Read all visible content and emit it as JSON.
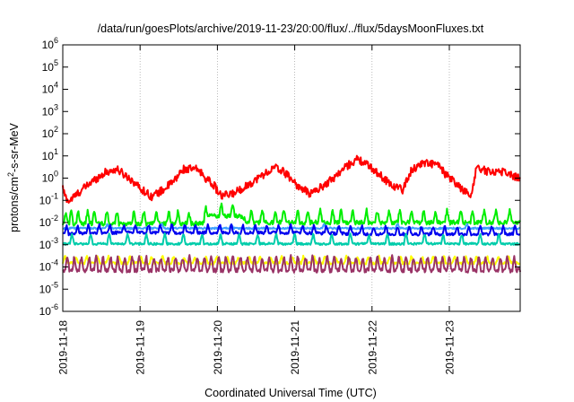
{
  "chart_data": {
    "type": "line",
    "title": "/data/run/goesPlots/archive/2019-11-23/20:00/flux/../flux/5daysMoonFluxes.txt",
    "xlabel": "Coordinated Universal Time (UTC)",
    "ylabel": {
      "base": "protons/cm",
      "sup": "2",
      "rest": "-s-sr-MeV"
    },
    "x_scale": "time",
    "x_range": [
      "2019-11-18T00:00",
      "2019-11-23T22:00"
    ],
    "x_ticks": [
      "2019-11-18",
      "2019-11-19",
      "2019-11-20",
      "2019-11-21",
      "2019-11-22",
      "2019-11-23"
    ],
    "y_scale": "log",
    "ylim": [
      1e-06,
      1000000.0
    ],
    "y_ticks": [
      {
        "base": "10",
        "exp": "-6"
      },
      {
        "base": "10",
        "exp": "-5"
      },
      {
        "base": "10",
        "exp": "-4"
      },
      {
        "base": "10",
        "exp": "-3"
      },
      {
        "base": "10",
        "exp": "-2"
      },
      {
        "base": "10",
        "exp": "-1"
      },
      {
        "base": "10",
        "exp": "0"
      },
      {
        "base": "10",
        "exp": "1"
      },
      {
        "base": "10",
        "exp": "2"
      },
      {
        "base": "10",
        "exp": "3"
      },
      {
        "base": "10",
        "exp": "4"
      },
      {
        "base": "10",
        "exp": "5"
      },
      {
        "base": "10",
        "exp": "6"
      }
    ],
    "grid": "vertical dotted at day ticks",
    "series": [
      {
        "color": "#ff0000",
        "profile": [
          [
            0.0,
            0.35
          ],
          [
            0.03,
            0.15
          ],
          [
            0.08,
            0.09
          ],
          [
            0.15,
            0.15
          ],
          [
            0.25,
            0.3
          ],
          [
            0.4,
            0.8
          ],
          [
            0.55,
            1.8
          ],
          [
            0.7,
            2.5
          ],
          [
            0.8,
            1.4
          ],
          [
            0.9,
            0.8
          ],
          [
            1.0,
            0.35
          ],
          [
            1.15,
            0.15
          ],
          [
            1.3,
            0.3
          ],
          [
            1.45,
            0.8
          ],
          [
            1.55,
            2.5
          ],
          [
            1.75,
            2.5
          ],
          [
            1.85,
            1.0
          ],
          [
            1.95,
            0.5
          ],
          [
            2.05,
            0.15
          ],
          [
            2.2,
            0.2
          ],
          [
            2.4,
            0.5
          ],
          [
            2.6,
            1.5
          ],
          [
            2.75,
            3.0
          ],
          [
            2.85,
            2.0
          ],
          [
            2.95,
            1.0
          ],
          [
            3.05,
            0.4
          ],
          [
            3.2,
            0.2
          ],
          [
            3.35,
            0.4
          ],
          [
            3.5,
            1.0
          ],
          [
            3.65,
            3.0
          ],
          [
            3.8,
            7.0
          ],
          [
            3.9,
            5.0
          ],
          [
            4.05,
            2.0
          ],
          [
            4.25,
            0.5
          ],
          [
            4.4,
            0.3
          ],
          [
            4.5,
            2.0
          ],
          [
            4.65,
            5.0
          ],
          [
            4.85,
            4.0
          ],
          [
            4.95,
            1.5
          ],
          [
            5.1,
            0.5
          ],
          [
            5.2,
            0.25
          ],
          [
            5.28,
            0.15
          ],
          [
            5.35,
            3.0
          ],
          [
            5.5,
            2.0
          ],
          [
            5.7,
            2.0
          ],
          [
            5.9,
            1.0
          ]
        ],
        "noise": 0.18
      },
      {
        "color": "#00ee00",
        "profile": [
          [
            0.0,
            0.009
          ],
          [
            1.8,
            0.009
          ],
          [
            1.9,
            0.02
          ],
          [
            2.3,
            0.02
          ],
          [
            2.4,
            0.01
          ],
          [
            5.9,
            0.01
          ]
        ],
        "spikes": [
          0.04,
          0.11,
          0.2,
          0.32,
          0.41,
          0.57,
          0.7,
          0.92,
          1.05,
          1.21,
          1.37,
          1.49,
          1.63,
          1.85,
          2.05,
          2.2,
          2.44,
          2.58,
          2.75,
          2.86,
          3.04,
          3.17,
          3.33,
          3.49,
          3.6,
          3.75,
          3.93,
          4.07,
          4.22,
          4.36,
          4.51,
          4.67,
          4.82,
          4.97,
          5.15,
          5.3,
          5.45,
          5.6,
          5.78
        ],
        "spike_factor": 3.5,
        "noise": 0.1
      },
      {
        "color": "#3fa0ff",
        "profile": [
          [
            0.0,
            0.0055
          ],
          [
            5.9,
            0.0055
          ]
        ],
        "spikes": [
          0.58,
          1.28,
          2.18,
          3.38,
          4.33,
          5.23
        ],
        "spike_factor": 1.6,
        "noise": 0.04
      },
      {
        "color": "#0000ee",
        "profile": [
          [
            0.0,
            0.003
          ],
          [
            0.4,
            0.0035
          ],
          [
            1.0,
            0.0035
          ],
          [
            2.0,
            0.0035
          ],
          [
            3.0,
            0.0035
          ],
          [
            4.0,
            0.003
          ],
          [
            5.0,
            0.003
          ],
          [
            5.9,
            0.003
          ]
        ],
        "spikes": [
          0.05,
          0.19,
          0.33,
          0.47,
          0.61,
          0.79,
          0.94,
          1.11,
          1.26,
          1.41,
          1.58,
          1.72,
          1.88,
          2.03,
          2.18,
          2.33,
          2.49,
          2.64,
          2.79,
          2.95,
          3.1,
          3.25,
          3.41,
          3.57,
          3.72,
          3.87,
          4.02,
          4.18,
          4.33,
          4.48,
          4.64,
          4.79,
          4.94,
          5.1,
          5.25,
          5.4,
          5.55,
          5.7,
          5.85
        ],
        "spike_factor": 2.3,
        "noise": 0.07
      },
      {
        "color": "#00ccaa",
        "profile": [
          [
            0.0,
            0.0011
          ],
          [
            5.9,
            0.0011
          ]
        ],
        "spikes": [
          0.12,
          0.36,
          0.6,
          0.84,
          1.08,
          1.32,
          1.56,
          1.8,
          2.04,
          2.28,
          2.52,
          2.76,
          3.0,
          3.24,
          3.48,
          3.72,
          3.96,
          4.2,
          4.44,
          4.68,
          4.92,
          5.16,
          5.4,
          5.64
        ],
        "spike_factor": 2.8,
        "noise": 0.05
      },
      {
        "color": "#ffff00",
        "profile": [
          [
            0.0,
            0.00015
          ],
          [
            5.9,
            0.00015
          ]
        ],
        "spikes": [
          0.03,
          0.17,
          0.31,
          0.45,
          0.59,
          0.73,
          0.87,
          1.01,
          1.15,
          1.29,
          1.43,
          1.57,
          1.71,
          1.85,
          1.99,
          2.13,
          2.27,
          2.41,
          2.55,
          2.69,
          2.83,
          2.97,
          3.11,
          3.25,
          3.39,
          3.53,
          3.67,
          3.81,
          3.95,
          4.09,
          4.23,
          4.37,
          4.51,
          4.65,
          4.79,
          4.93,
          5.07,
          5.21,
          5.35,
          5.49,
          5.63,
          5.77
        ],
        "spike_factor": 2.0,
        "noise": 0.06
      },
      {
        "color": "#993366",
        "profile": [
          [
            0.0,
            7e-05
          ],
          [
            5.9,
            7e-05
          ]
        ],
        "spikes": [
          0.06,
          0.15,
          0.24,
          0.34,
          0.43,
          0.52,
          0.62,
          0.71,
          0.8,
          0.9,
          0.99,
          1.08,
          1.18,
          1.27,
          1.36,
          1.46,
          1.55,
          1.64,
          1.74,
          1.83,
          1.92,
          2.02,
          2.11,
          2.2,
          2.3,
          2.39,
          2.48,
          2.58,
          2.67,
          2.76,
          2.86,
          2.95,
          3.04,
          3.14,
          3.23,
          3.32,
          3.42,
          3.51,
          3.6,
          3.7,
          3.79,
          3.88,
          3.98,
          4.07,
          4.16,
          4.26,
          4.35,
          4.44,
          4.54,
          4.63,
          4.72,
          4.82,
          4.91,
          5.0,
          5.1,
          5.19,
          5.28,
          5.38,
          5.47,
          5.56,
          5.66,
          5.75,
          5.84
        ],
        "spike_factor": 4.0,
        "noise": 0.1
      }
    ]
  }
}
